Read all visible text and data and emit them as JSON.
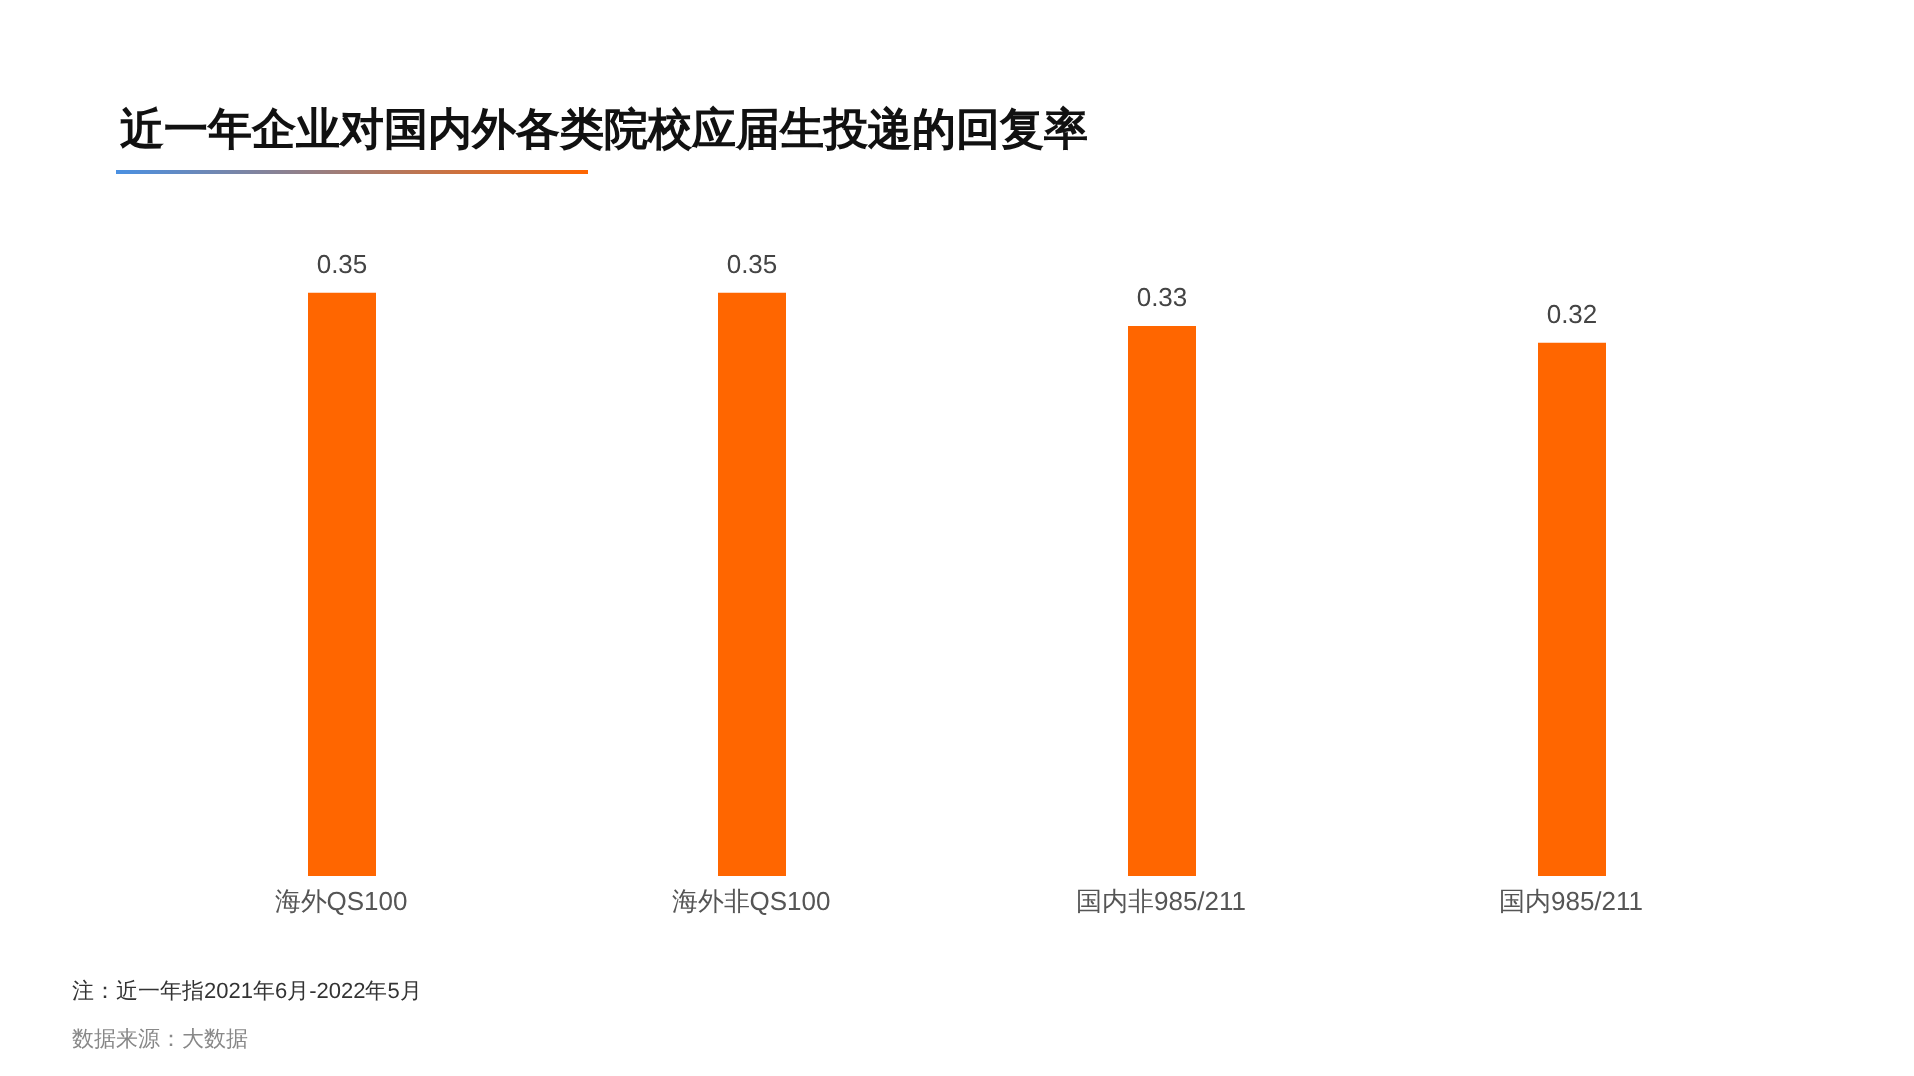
{
  "chart_data": {
    "type": "bar",
    "title": "近一年企业对国内外各类院校应届生投递的回复率",
    "categories": [
      "海外QS100",
      "海外非QS100",
      "国内非985/211",
      "国内985/211"
    ],
    "values": [
      0.35,
      0.35,
      0.33,
      0.32
    ],
    "color": "#ff6600",
    "data_labels": true,
    "tick_labels": "x",
    "grid": false,
    "legend": false,
    "annotations": [
      "注：近一年指2021年6月-2022年5月",
      "数据来源：大数据"
    ]
  }
}
